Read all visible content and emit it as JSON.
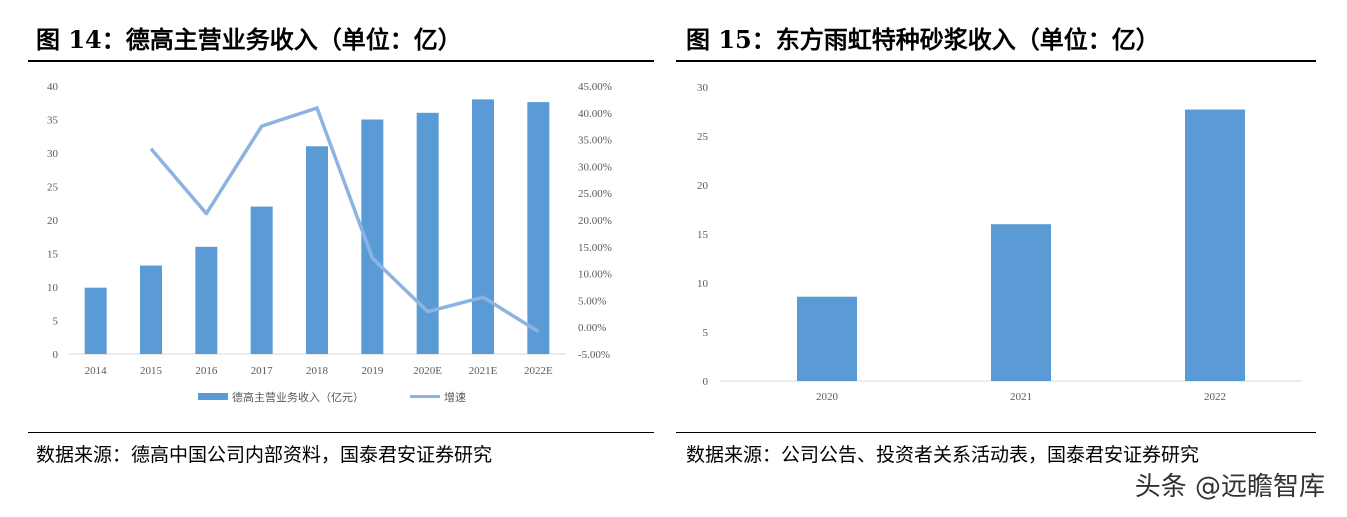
{
  "left": {
    "title": "图 14：德高主营业务收入（单位：亿）",
    "source": "数据来源：德高中国公司内部资料，国泰君安证券研究"
  },
  "right": {
    "title": "图 15：东方雨虹特种砂浆收入（单位：亿）",
    "source": "数据来源：公司公告、投资者关系活动表，国泰君安证券研究"
  },
  "watermark": "头条 @远瞻智库",
  "chart_data": [
    {
      "type": "bar+line",
      "categories": [
        "2014",
        "2015",
        "2016",
        "2017",
        "2018",
        "2019",
        "2020E",
        "2021E",
        "2022E"
      ],
      "series": [
        {
          "name": "德高主营业务收入（亿元）",
          "type": "bar",
          "axis": "left",
          "color": "#5b9bd5",
          "values": [
            9.9,
            13.2,
            16,
            22,
            31,
            35,
            36,
            38,
            37.6
          ]
        },
        {
          "name": "增速",
          "type": "line",
          "axis": "right",
          "color": "#8db3e2",
          "values": [
            null,
            33.3,
            21.2,
            37.5,
            40.9,
            12.9,
            2.9,
            5.6,
            -0.8
          ]
        }
      ],
      "ylim": [
        0,
        40
      ],
      "yticks": [
        0,
        5,
        10,
        15,
        20,
        25,
        30,
        35,
        40
      ],
      "y2lim": [
        -5,
        45
      ],
      "y2ticks": [
        "-5.00%",
        "0.00%",
        "5.00%",
        "10.00%",
        "15.00%",
        "20.00%",
        "25.00%",
        "30.00%",
        "35.00%",
        "40.00%",
        "45.00%"
      ],
      "legend": "bottom",
      "grid": false
    },
    {
      "type": "bar",
      "categories": [
        "2020",
        "2021",
        "2022"
      ],
      "values": [
        8.6,
        16,
        27.7
      ],
      "color": "#5b9bd5",
      "ylim": [
        0,
        30
      ],
      "yticks": [
        0,
        5,
        10,
        15,
        20,
        25,
        30
      ],
      "grid": false
    }
  ]
}
